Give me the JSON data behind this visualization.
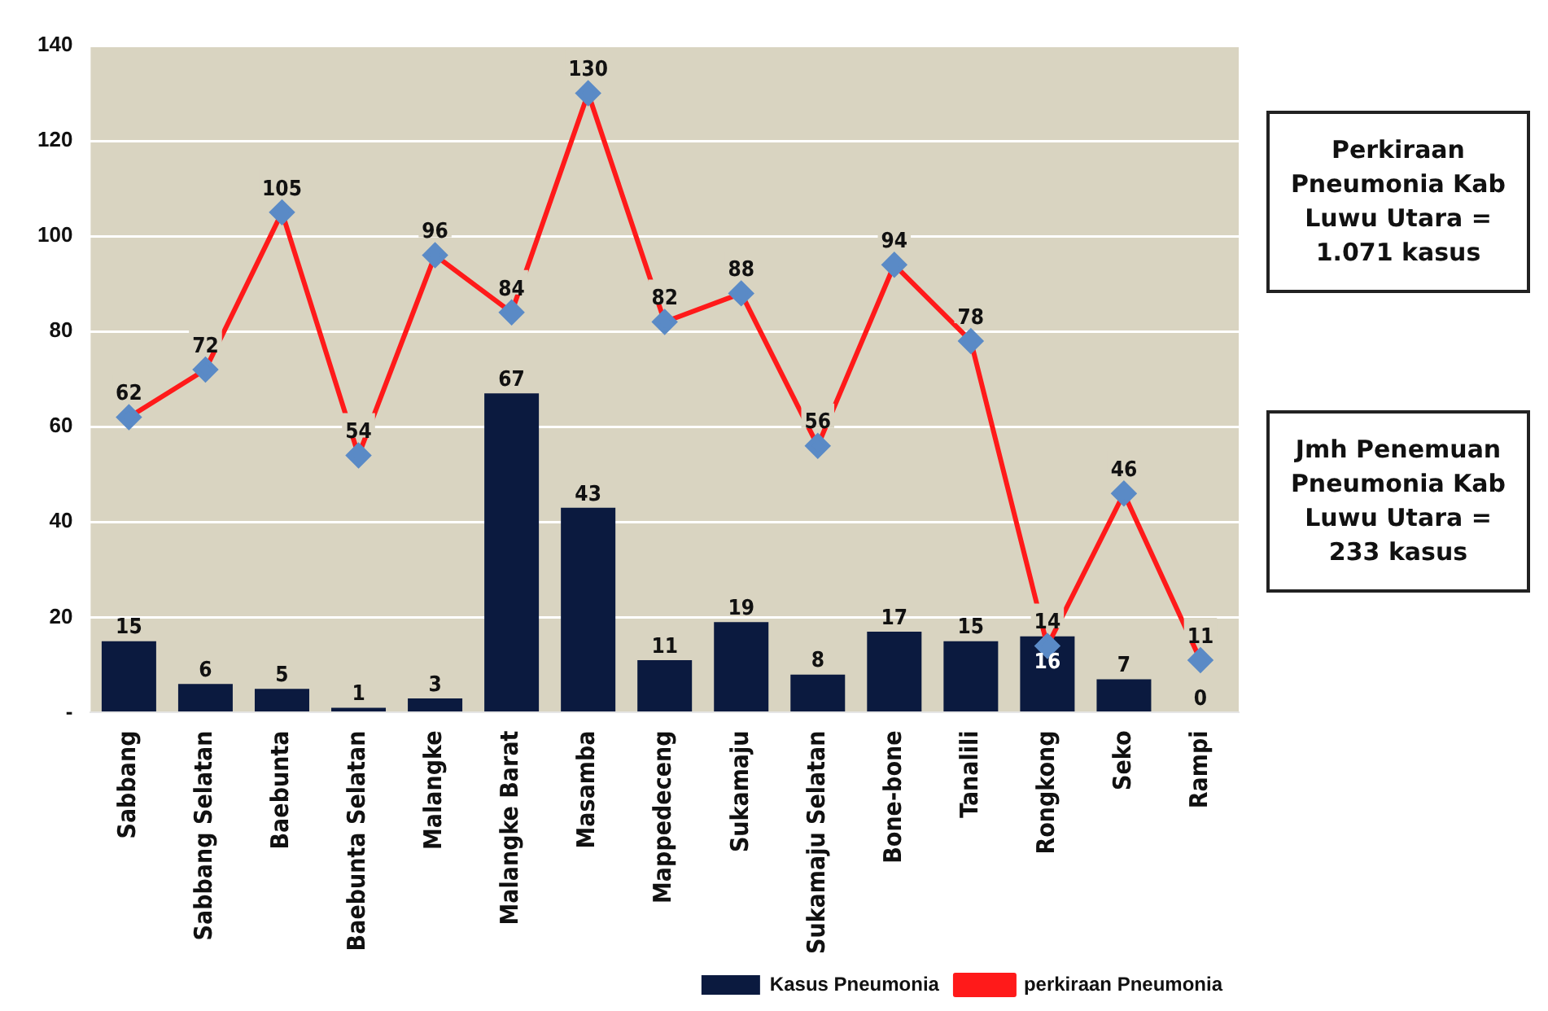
{
  "chart_data": {
    "type": "bar",
    "categories": [
      "Sabbang",
      "Sabbang Selatan",
      "Baebunta",
      "Baebunta Selatan",
      "Malangke",
      "Malangke Barat",
      "Masamba",
      "Mappedeceng",
      "Sukamaju",
      "Sukamaju Selatan",
      "Bone-bone",
      "Tanalili",
      "Rongkong",
      "Seko",
      "Rampi"
    ],
    "series": [
      {
        "name": "Kasus Pneumonia",
        "color": "#0b1a3f",
        "values": [
          15,
          6,
          5,
          1,
          3,
          67,
          43,
          11,
          19,
          8,
          17,
          15,
          16,
          7,
          0
        ]
      },
      {
        "name": "perkiraan Pneumonia",
        "type": "line",
        "color": "#ff1a1a",
        "marker": "diamond",
        "values": [
          62,
          72,
          105,
          54,
          96,
          84,
          130,
          82,
          88,
          56,
          94,
          78,
          14,
          46,
          11
        ]
      }
    ],
    "ylim": [
      0,
      140
    ],
    "yticks": [
      {
        "value": 0,
        "label": "-"
      },
      20,
      40,
      60,
      80,
      100,
      120,
      140
    ],
    "grid": "y",
    "legend": "bottom right",
    "data_labels": true,
    "annotations": [
      "Perkiraan Pneumonia Kab Luwu Utara = 1.071 kasus",
      "Jmh Penemuan Pneumonia Kab Luwu Utara = 233 kasus"
    ]
  }
}
